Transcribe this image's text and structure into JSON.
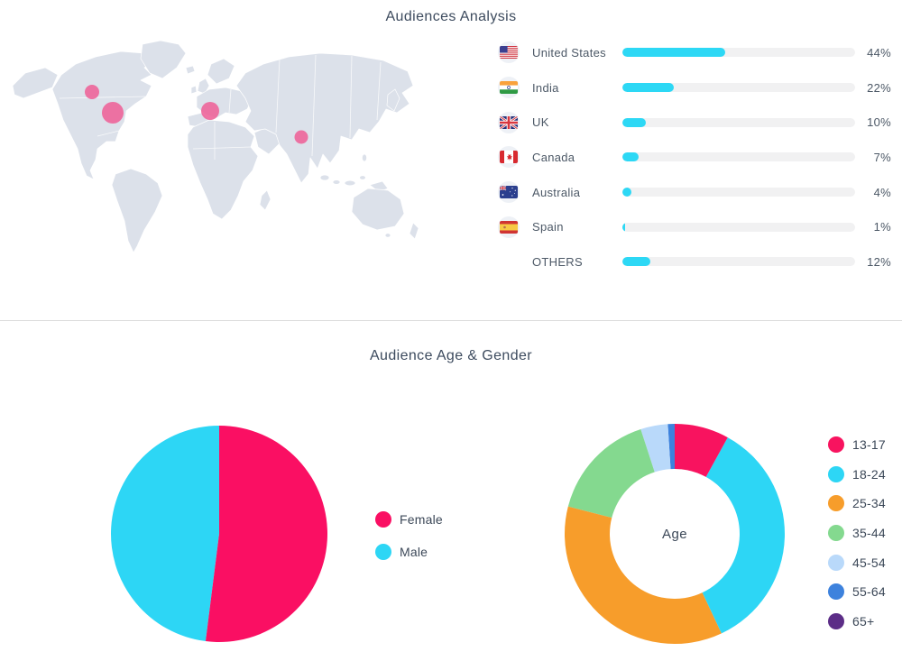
{
  "sections": {
    "audiences": {
      "title": "Audiences Analysis"
    },
    "age_gender": {
      "title": "Audience Age & Gender"
    }
  },
  "map": {
    "land_color": "#dce1ea",
    "bubble_color": "#ee6197",
    "bubbles": [
      {
        "region": "canada",
        "x": 92,
        "y": 57,
        "r": 8
      },
      {
        "region": "united-states",
        "x": 115,
        "y": 80,
        "r": 12
      },
      {
        "region": "western-europe",
        "x": 223,
        "y": 78,
        "r": 10
      },
      {
        "region": "india",
        "x": 324,
        "y": 107,
        "r": 7.5
      }
    ]
  },
  "chart_data": [
    {
      "id": "countries",
      "type": "bar",
      "orientation": "horizontal",
      "title": "Audiences Analysis",
      "categories": [
        "United States",
        "India",
        "UK",
        "Canada",
        "Australia",
        "Spain",
        "OTHERS"
      ],
      "values": [
        44,
        22,
        10,
        7,
        4,
        1,
        12
      ],
      "value_labels": [
        "44%",
        "22%",
        "10%",
        "7%",
        "4%",
        "1%",
        "12%"
      ],
      "value_range": [
        0,
        100
      ],
      "flags": [
        "us",
        "in",
        "uk",
        "ca",
        "au",
        "es",
        null
      ],
      "bar_color": "#2dd8f5",
      "track_color": "#f1f1f2"
    },
    {
      "id": "gender",
      "type": "pie",
      "title": "Audience Age & Gender",
      "legend_position": "right",
      "series": [
        {
          "name": "Female",
          "value": 52,
          "color": "#fa0f63"
        },
        {
          "name": "Male",
          "value": 48,
          "color": "#2dd6f5"
        }
      ]
    },
    {
      "id": "age",
      "type": "pie",
      "subtype": "donut",
      "center_label": "Age",
      "legend_position": "right",
      "series": [
        {
          "name": "13-17",
          "value": 8,
          "color": "#f8135f"
        },
        {
          "name": "18-24",
          "value": 35,
          "color": "#2dd6f5"
        },
        {
          "name": "25-34",
          "value": 36,
          "color": "#f79d2b"
        },
        {
          "name": "35-44",
          "value": 16,
          "color": "#84d98f"
        },
        {
          "name": "45-54",
          "value": 4,
          "color": "#b9d9fa"
        },
        {
          "name": "55-64",
          "value": 1,
          "color": "#3d82dd"
        },
        {
          "name": "65+",
          "value": 0,
          "color": "#5c2d87"
        }
      ]
    }
  ]
}
